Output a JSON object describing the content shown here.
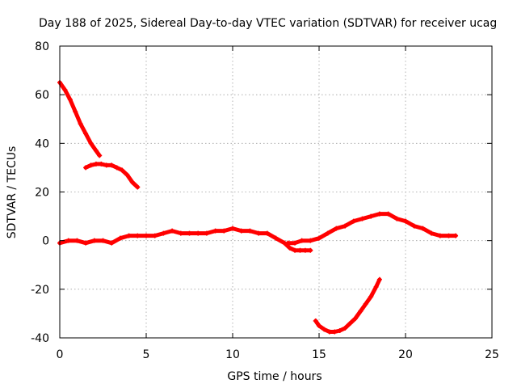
{
  "chart_data": {
    "type": "line",
    "title": "Day 188 of 2025, Sidereal Day-to-day VTEC variation (SDTVAR) for receiver ucag",
    "xlabel": "GPS time / hours",
    "ylabel": "SDTVAR / TECUs",
    "xlim": [
      0,
      25
    ],
    "ylim": [
      -40,
      80
    ],
    "xticks": [
      0,
      5,
      10,
      15,
      20,
      25
    ],
    "yticks": [
      -40,
      -20,
      0,
      20,
      40,
      60,
      80
    ],
    "grid": true,
    "legend": "none",
    "series_color": "#ff0000",
    "series": [
      {
        "name": "segment-1-descending",
        "x": [
          0.0,
          0.3,
          0.6,
          0.9,
          1.2,
          1.5,
          1.8,
          2.1,
          2.3
        ],
        "y": [
          65,
          62,
          58,
          53,
          48,
          44,
          40,
          37,
          35
        ]
      },
      {
        "name": "segment-2-hump",
        "x": [
          1.5,
          1.8,
          2.1,
          2.4,
          2.7,
          3.0,
          3.3,
          3.6,
          3.9,
          4.2,
          4.5
        ],
        "y": [
          30,
          31,
          31.5,
          31.5,
          31,
          31,
          30,
          29,
          27,
          24,
          22
        ]
      },
      {
        "name": "segment-3-main-band",
        "x": [
          0.0,
          0.5,
          1.0,
          1.5,
          2.0,
          2.5,
          3.0,
          3.5,
          4.0,
          4.5,
          5.0,
          5.5,
          6.0,
          6.5,
          7.0,
          7.5,
          8.0,
          8.5,
          9.0,
          9.5,
          10.0,
          10.5,
          11.0,
          11.5,
          12.0,
          12.5,
          13.0,
          13.3,
          13.6,
          13.9,
          14.2,
          14.5
        ],
        "y": [
          -1,
          0,
          0,
          -1,
          0,
          0,
          -1,
          1,
          2,
          2,
          2,
          2,
          3,
          4,
          3,
          3,
          3,
          3,
          4,
          4,
          5,
          4,
          4,
          3,
          3,
          1,
          -1,
          -3,
          -4,
          -4,
          -4,
          -4
        ]
      },
      {
        "name": "segment-4-rising",
        "x": [
          13.2,
          13.6,
          14.0,
          14.5,
          15.0,
          15.5,
          16.0,
          16.5,
          17.0,
          17.5,
          18.0,
          18.5,
          19.0,
          19.5,
          20.0,
          20.5,
          21.0,
          21.5,
          22.0,
          22.5,
          22.9
        ],
        "y": [
          -1,
          -1,
          0,
          0,
          1,
          3,
          5,
          6,
          8,
          9,
          10,
          11,
          11,
          9,
          8,
          6,
          5,
          3,
          2,
          2,
          2
        ]
      },
      {
        "name": "segment-5-dip",
        "x": [
          14.8,
          15.0,
          15.3,
          15.6,
          15.9,
          16.2,
          16.5,
          16.8,
          17.1,
          17.4,
          17.7,
          18.0,
          18.3,
          18.5
        ],
        "y": [
          -33,
          -35,
          -36.5,
          -37.5,
          -37.5,
          -37,
          -36,
          -34,
          -32,
          -29,
          -26,
          -23,
          -19,
          -16
        ]
      }
    ]
  }
}
